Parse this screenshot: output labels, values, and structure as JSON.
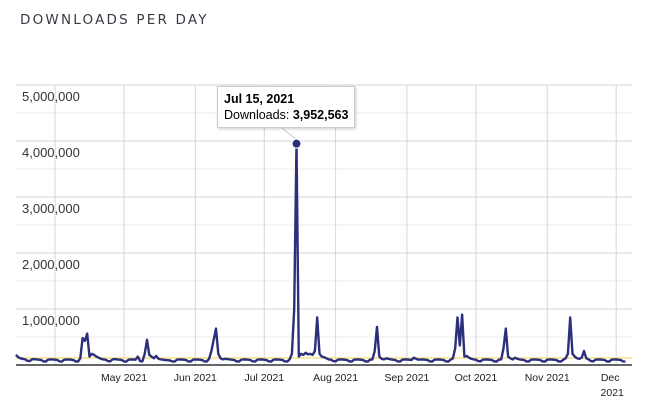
{
  "chart_data": {
    "type": "line",
    "title": "DOWNLOADS PER DAY",
    "start_date": "2021-03-15",
    "end_date": "2021-12-05",
    "ylim": [
      0,
      5000000
    ],
    "y_ticks": [
      {
        "value": 1000000,
        "label": "1,000,000"
      },
      {
        "value": 2000000,
        "label": "2,000,000"
      },
      {
        "value": 3000000,
        "label": "3,000,000"
      },
      {
        "value": 4000000,
        "label": "4,000,000"
      },
      {
        "value": 5000000,
        "label": "5,000,000"
      }
    ],
    "x_ticks": [
      {
        "day_index": 17,
        "label": ""
      },
      {
        "day_index": 47,
        "label": "May 2021"
      },
      {
        "day_index": 78,
        "label": "Jun 2021"
      },
      {
        "day_index": 108,
        "label": "Jul 2021"
      },
      {
        "day_index": 139,
        "label": "Aug 2021"
      },
      {
        "day_index": 170,
        "label": "Sep 2021"
      },
      {
        "day_index": 200,
        "label": "Oct 2021"
      },
      {
        "day_index": 231,
        "label": "Nov 2021"
      },
      {
        "day_index": 261,
        "label": "Dec",
        "label2": "2021"
      }
    ],
    "grid": true,
    "series": [
      {
        "name": "Downloads",
        "color": "#2b2f7c",
        "values": [
          180000,
          140000,
          120000,
          110000,
          100000,
          75000,
          70000,
          100000,
          105000,
          100000,
          95000,
          90000,
          65000,
          62000,
          95000,
          100000,
          100000,
          95000,
          90000,
          65000,
          60000,
          95000,
          100000,
          98000,
          95000,
          88000,
          65000,
          62000,
          120000,
          480000,
          430000,
          560000,
          150000,
          200000,
          180000,
          150000,
          130000,
          110000,
          100000,
          95000,
          70000,
          65000,
          100000,
          105000,
          100000,
          95000,
          90000,
          65000,
          60000,
          95000,
          100000,
          98000,
          95000,
          150000,
          70000,
          65000,
          200000,
          450000,
          180000,
          150000,
          120000,
          160000,
          110000,
          100000,
          95000,
          90000,
          85000,
          80000,
          65000,
          60000,
          95000,
          100000,
          98000,
          95000,
          88000,
          65000,
          62000,
          95000,
          100000,
          98000,
          95000,
          88000,
          65000,
          62000,
          110000,
          250000,
          450000,
          650000,
          200000,
          120000,
          100000,
          110000,
          105000,
          100000,
          95000,
          88000,
          65000,
          62000,
          95000,
          100000,
          98000,
          95000,
          88000,
          65000,
          62000,
          95000,
          100000,
          98000,
          95000,
          88000,
          65000,
          62000,
          95000,
          100000,
          98000,
          95000,
          88000,
          65000,
          62000,
          100000,
          200000,
          1000000,
          3952563,
          150000,
          200000,
          180000,
          220000,
          190000,
          200000,
          180000,
          250000,
          850000,
          200000,
          150000,
          140000,
          120000,
          100000,
          95000,
          70000,
          65000,
          95000,
          100000,
          98000,
          95000,
          88000,
          65000,
          62000,
          95000,
          100000,
          98000,
          95000,
          88000,
          65000,
          62000,
          95000,
          100000,
          250000,
          680000,
          150000,
          110000,
          100000,
          120000,
          110000,
          100000,
          95000,
          88000,
          65000,
          62000,
          95000,
          100000,
          98000,
          95000,
          88000,
          130000,
          110000,
          95000,
          100000,
          98000,
          95000,
          88000,
          65000,
          62000,
          95000,
          100000,
          98000,
          95000,
          88000,
          65000,
          62000,
          95000,
          120000,
          300000,
          850000,
          350000,
          900000,
          150000,
          160000,
          130000,
          110000,
          100000,
          95000,
          70000,
          65000,
          95000,
          100000,
          98000,
          95000,
          88000,
          65000,
          62000,
          95000,
          100000,
          300000,
          650000,
          150000,
          120000,
          100000,
          130000,
          110000,
          100000,
          95000,
          88000,
          65000,
          62000,
          95000,
          100000,
          98000,
          95000,
          88000,
          65000,
          62000,
          95000,
          100000,
          98000,
          95000,
          88000,
          65000,
          62000,
          95000,
          120000,
          200000,
          850000,
          200000,
          150000,
          120000,
          110000,
          130000,
          250000,
          120000,
          100000,
          70000,
          65000,
          95000,
          100000,
          98000,
          95000,
          88000,
          65000,
          62000,
          95000,
          100000,
          98000,
          95000,
          88000,
          65000,
          60000
        ]
      }
    ],
    "reference_line": {
      "value": 125000,
      "color": "#f5e08a"
    },
    "highlight": {
      "day_index": 122,
      "date": "Jul 15, 2021",
      "label": "Downloads:",
      "value": "3,952,563"
    }
  }
}
